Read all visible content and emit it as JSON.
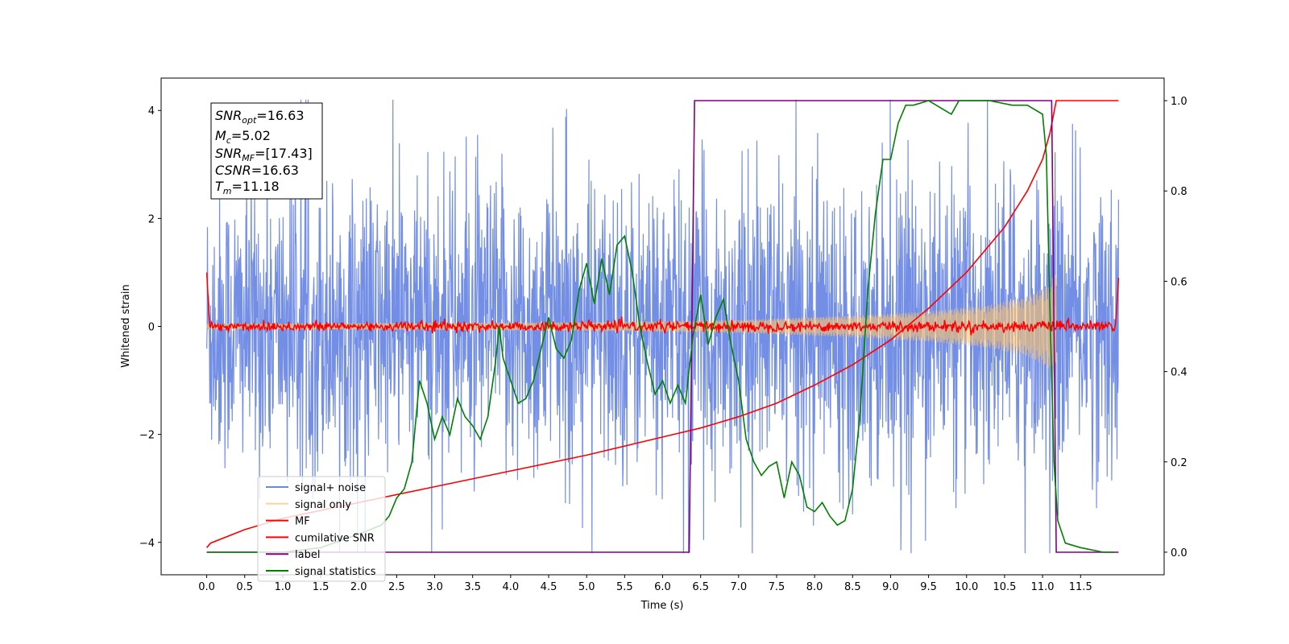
{
  "chart_data": {
    "type": "line",
    "xlabel": "Time (s)",
    "ylabel": "Whitened strain",
    "xlim": [
      -0.6,
      12.6
    ],
    "ylim": [
      -4.6,
      4.6
    ],
    "y2lim": [
      -0.05,
      1.05
    ],
    "x_ticks": [
      0.0,
      0.5,
      1.0,
      1.5,
      2.0,
      2.5,
      3.0,
      3.5,
      4.0,
      4.5,
      5.0,
      5.5,
      6.0,
      6.5,
      7.0,
      7.5,
      8.0,
      8.5,
      9.0,
      9.5,
      10.0,
      10.5,
      11.0,
      11.5
    ],
    "x_tick_labels": [
      "0.0",
      "0.5",
      "1.0",
      "1.5",
      "2.0",
      "2.5",
      "3.0",
      "3.5",
      "4.0",
      "4.5",
      "5.0",
      "5.5",
      "6.0",
      "6.5",
      "7.0",
      "7.5",
      "8.0",
      "8.5",
      "9.0",
      "9.5",
      "10.0",
      "10.5",
      "11.0",
      "11.5"
    ],
    "y_ticks": [
      -4,
      -2,
      0,
      2,
      4
    ],
    "y_tick_labels": [
      "−4",
      "−2",
      "0",
      "2",
      "4"
    ],
    "y2_ticks": [
      0.0,
      0.2,
      0.4,
      0.6,
      0.8,
      1.0
    ],
    "y2_tick_labels": [
      "0.0",
      "0.2",
      "0.4",
      "0.6",
      "0.8",
      "1.0"
    ],
    "legend_position": "lower-left",
    "annotation": {
      "snr_opt": "16.63",
      "mc": "5.02",
      "snr_mf": "[17.43]",
      "csnr": "16.63",
      "tm": "11.18"
    },
    "series": [
      {
        "name": "signal+ noise",
        "color": "#6b88e4",
        "axis": "left",
        "style": "noise",
        "x_range": [
          0.0,
          12.0
        ],
        "envelope": [
          [
            0.0,
            2.4
          ],
          [
            2.0,
            2.4
          ],
          [
            6.0,
            2.4
          ],
          [
            12.0,
            2.4
          ]
        ]
      },
      {
        "name": "signal only",
        "color": "#ffc46b",
        "axis": "left",
        "style": "chirp",
        "x_range": [
          0.0,
          11.18
        ],
        "envelope": [
          [
            0.0,
            0.05
          ],
          [
            5.0,
            0.08
          ],
          [
            7.0,
            0.12
          ],
          [
            8.5,
            0.2
          ],
          [
            9.5,
            0.28
          ],
          [
            10.3,
            0.4
          ],
          [
            10.8,
            0.55
          ],
          [
            11.05,
            0.75
          ],
          [
            11.18,
            1.0
          ]
        ]
      },
      {
        "name": "MF",
        "color": "#ff0000",
        "axis": "left",
        "style": "mf",
        "x_range": [
          0.0,
          12.0
        ],
        "noise_amplitude": 0.08,
        "start_value": 1.0,
        "end_value": 0.9
      },
      {
        "name": "cumilative SNR",
        "color": "#ff0000",
        "axis": "right",
        "x": [
          0.0,
          0.05,
          0.5,
          1.0,
          2.0,
          3.0,
          4.0,
          5.0,
          6.0,
          6.5,
          7.0,
          7.5,
          8.0,
          8.5,
          9.0,
          9.5,
          10.0,
          10.5,
          10.8,
          11.0,
          11.1,
          11.18,
          12.0
        ],
        "y": [
          0.01,
          0.02,
          0.05,
          0.075,
          0.11,
          0.145,
          0.18,
          0.215,
          0.255,
          0.275,
          0.3,
          0.33,
          0.37,
          0.415,
          0.47,
          0.54,
          0.62,
          0.72,
          0.8,
          0.87,
          0.93,
          1.0,
          1.0
        ]
      },
      {
        "name": "label",
        "color": "#800080",
        "axis": "right",
        "x": [
          0.0,
          6.35,
          6.42,
          11.12,
          11.18,
          12.0
        ],
        "y": [
          0.0,
          0.0,
          1.0,
          1.0,
          0.0,
          0.0
        ]
      },
      {
        "name": "signal statistics",
        "color": "#008000",
        "axis": "right",
        "x": [
          0.0,
          0.5,
          1.0,
          1.5,
          2.0,
          2.3,
          2.4,
          2.5,
          2.6,
          2.7,
          2.8,
          2.9,
          3.0,
          3.1,
          3.2,
          3.3,
          3.4,
          3.5,
          3.6,
          3.7,
          3.8,
          3.85,
          3.9,
          4.0,
          4.1,
          4.2,
          4.3,
          4.4,
          4.5,
          4.6,
          4.7,
          4.8,
          4.9,
          5.0,
          5.1,
          5.2,
          5.3,
          5.4,
          5.5,
          5.6,
          5.7,
          5.8,
          5.9,
          6.0,
          6.1,
          6.2,
          6.3,
          6.4,
          6.5,
          6.6,
          6.7,
          6.8,
          6.9,
          7.0,
          7.1,
          7.2,
          7.3,
          7.4,
          7.5,
          7.6,
          7.7,
          7.8,
          7.9,
          8.0,
          8.1,
          8.2,
          8.3,
          8.4,
          8.5,
          8.6,
          8.7,
          8.8,
          8.9,
          9.0,
          9.1,
          9.2,
          9.3,
          9.5,
          9.7,
          9.8,
          9.9,
          10.0,
          10.3,
          10.6,
          10.8,
          11.0,
          11.05,
          11.1,
          11.15,
          11.2,
          11.3,
          11.5,
          11.8,
          11.95
        ],
        "y": [
          0.0,
          0.0,
          0.0,
          0.01,
          0.04,
          0.06,
          0.08,
          0.12,
          0.14,
          0.2,
          0.38,
          0.33,
          0.25,
          0.3,
          0.26,
          0.34,
          0.3,
          0.28,
          0.25,
          0.3,
          0.42,
          0.5,
          0.43,
          0.38,
          0.33,
          0.34,
          0.38,
          0.45,
          0.52,
          0.45,
          0.43,
          0.47,
          0.58,
          0.64,
          0.55,
          0.65,
          0.57,
          0.68,
          0.7,
          0.62,
          0.5,
          0.42,
          0.35,
          0.38,
          0.33,
          0.37,
          0.33,
          0.48,
          0.57,
          0.46,
          0.52,
          0.56,
          0.46,
          0.38,
          0.25,
          0.2,
          0.17,
          0.19,
          0.2,
          0.12,
          0.2,
          0.17,
          0.1,
          0.09,
          0.11,
          0.08,
          0.06,
          0.07,
          0.14,
          0.31,
          0.58,
          0.75,
          0.87,
          0.87,
          0.95,
          0.99,
          0.99,
          1.0,
          0.98,
          0.97,
          1.0,
          1.0,
          1.0,
          0.99,
          0.99,
          0.97,
          0.88,
          0.52,
          0.2,
          0.07,
          0.02,
          0.01,
          0.0,
          0.0
        ]
      }
    ]
  }
}
